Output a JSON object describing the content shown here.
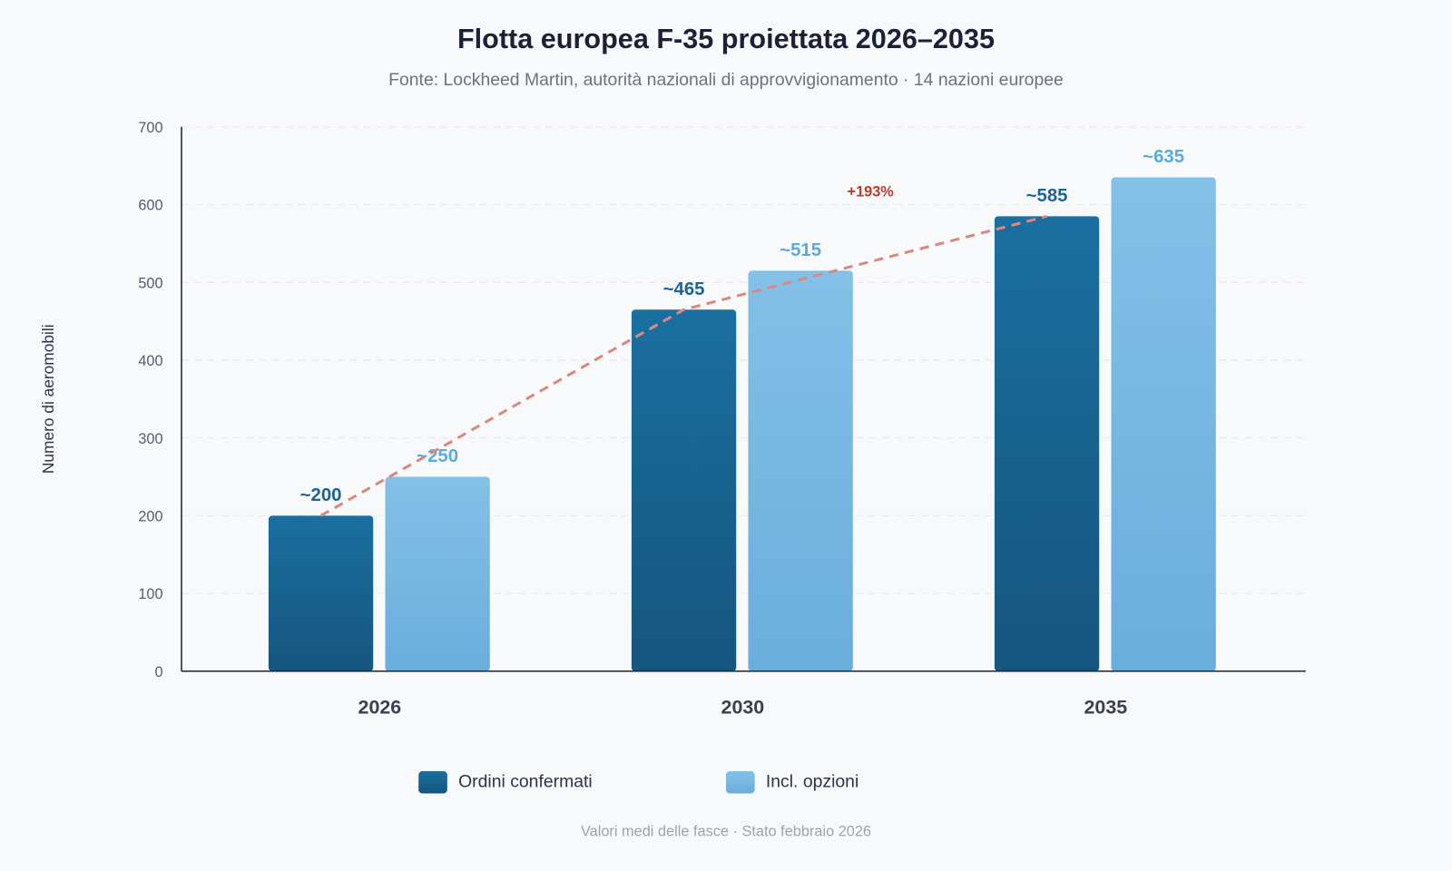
{
  "title": "Flotta europea F-35 proiettata 2026–2035",
  "subtitle": "Fonte: Lockheed Martin, autorità nazionali di approvvigionamento · 14 nazioni europee",
  "footer": "Valori medi delle fasce · Stato febbraio 2026",
  "chart_data": {
    "type": "bar",
    "title": "Flotta europea F-35 proiettata 2026–2035",
    "ylabel": "Numero di aeromobili",
    "xlabel": "",
    "ylim": [
      0,
      700
    ],
    "yticks": [
      0,
      100,
      200,
      300,
      400,
      500,
      600,
      700
    ],
    "grid": true,
    "legend_position": "bottom",
    "categories": [
      "2026",
      "2030",
      "2035"
    ],
    "series": [
      {
        "name": "Ordini confermati",
        "values": [
          200,
          465,
          585
        ],
        "labels": [
          "~200",
          "~465",
          "~585"
        ],
        "color": "#17628f"
      },
      {
        "name": "Incl. opzioni",
        "values": [
          250,
          515,
          635
        ],
        "labels": [
          "~250",
          "~515",
          "~635"
        ],
        "color": "#7cbbe6"
      }
    ],
    "trend_line": {
      "series": "Ordini confermati",
      "style": "dashed",
      "color": "#d98a80"
    },
    "annotation": {
      "text": "+193%",
      "color": "#c0392b"
    }
  }
}
